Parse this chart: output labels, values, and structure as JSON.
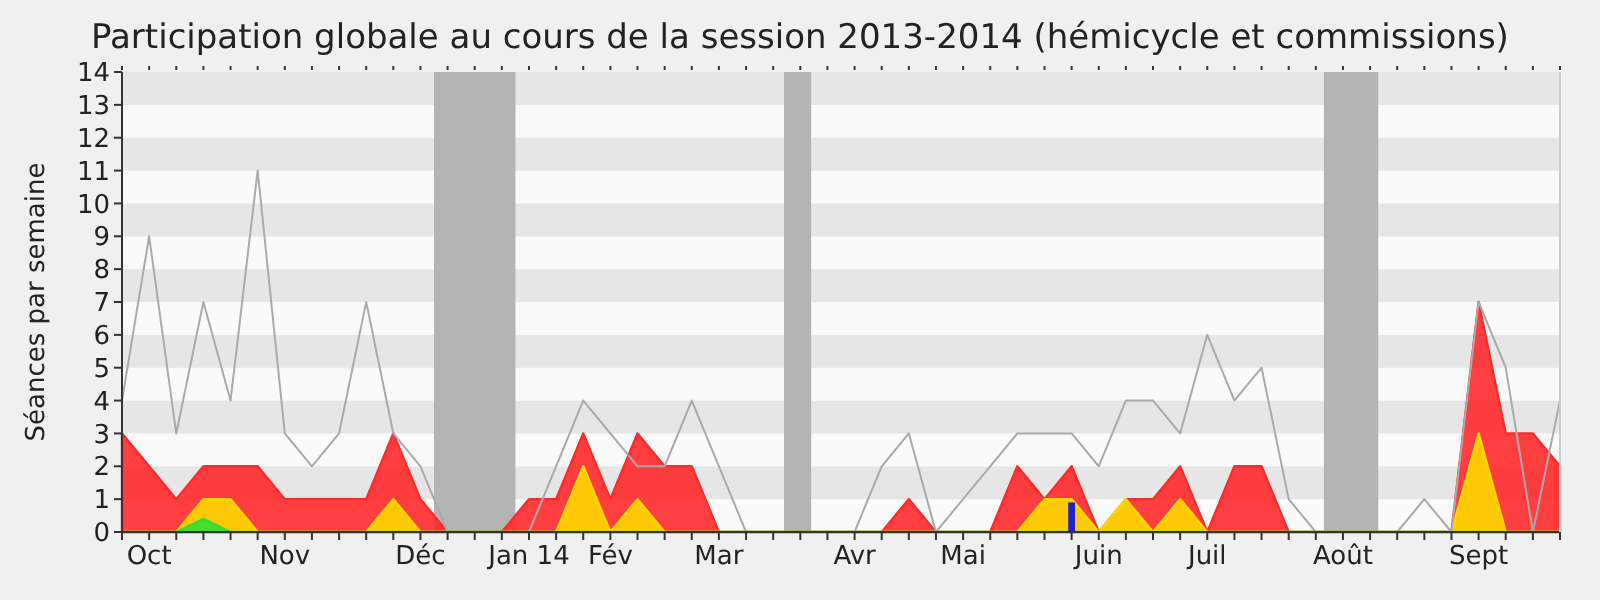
{
  "chart_data": {
    "type": "area",
    "title": "Participation globale au cours de la session 2013-2014 (hémicycle et commissions)",
    "ylabel": "Séances par semaine",
    "categories": [
      null,
      "Oct",
      null,
      null,
      null,
      null,
      "Nov",
      null,
      null,
      null,
      null,
      "Déc",
      null,
      null,
      null,
      "Jan 14",
      null,
      null,
      "Fév",
      null,
      null,
      null,
      "Mar",
      null,
      null,
      null,
      null,
      "Avr",
      null,
      null,
      null,
      "Mai",
      null,
      null,
      null,
      null,
      "Juin",
      null,
      null,
      null,
      "Juil",
      null,
      null,
      null,
      null,
      "Août",
      null,
      null,
      null,
      null,
      "Sept",
      null,
      null,
      null
    ],
    "ylim": [
      0,
      14
    ],
    "yticks": [
      0,
      1,
      2,
      3,
      4,
      5,
      6,
      7,
      8,
      9,
      10,
      11,
      12,
      13,
      14
    ],
    "series": [
      {
        "color": "#ff2a2a",
        "values": [
          3,
          2,
          1,
          2,
          2,
          2,
          1,
          1,
          1,
          1,
          3,
          1,
          0,
          0,
          0,
          1,
          1,
          3,
          1,
          3,
          2,
          2,
          0,
          0,
          0,
          0,
          0,
          0,
          0,
          1,
          0,
          0,
          0,
          2,
          1,
          2,
          0,
          1,
          1,
          2,
          0,
          2,
          2,
          0,
          0,
          0,
          0,
          0,
          0,
          0,
          7,
          3,
          3,
          2
        ]
      },
      {
        "color": "#ffd700",
        "values": [
          0,
          0,
          0,
          1,
          1,
          0,
          0,
          0,
          0,
          0,
          1,
          0,
          0,
          0,
          0,
          0,
          0,
          2,
          0,
          1,
          0,
          0,
          0,
          0,
          0,
          0,
          0,
          0,
          0,
          0,
          0,
          0,
          0,
          0,
          1,
          1,
          0,
          1,
          0,
          1,
          0,
          0,
          0,
          0,
          0,
          0,
          0,
          0,
          0,
          0,
          3,
          0,
          0,
          0
        ]
      },
      {
        "color": "#33dd33",
        "values": [
          0,
          0,
          0,
          0.4,
          0,
          0,
          0,
          0,
          0,
          0,
          0,
          0,
          0,
          0,
          0,
          0,
          0,
          0,
          0,
          0,
          0,
          0,
          0,
          0,
          0,
          0,
          0,
          0,
          0,
          0,
          0,
          0,
          0,
          0,
          0,
          0,
          0,
          0,
          0,
          0,
          0,
          0,
          0,
          0,
          0,
          0,
          0,
          0,
          0,
          0,
          0,
          0,
          0,
          0
        ]
      },
      {
        "type": "bar",
        "color": "#2222cc",
        "values": [
          null,
          null,
          null,
          null,
          null,
          null,
          null,
          null,
          null,
          null,
          null,
          null,
          null,
          null,
          null,
          null,
          null,
          null,
          null,
          null,
          null,
          null,
          null,
          null,
          null,
          null,
          null,
          null,
          null,
          null,
          null,
          null,
          null,
          null,
          null,
          0.9,
          null,
          null,
          null,
          null,
          null,
          null,
          null,
          null,
          null,
          null,
          null,
          null,
          null,
          null,
          null,
          null,
          null,
          null
        ]
      },
      {
        "type": "line",
        "color": "#aaaaaa",
        "values": [
          4,
          9,
          3,
          7,
          4,
          11,
          3,
          2,
          3,
          7,
          3,
          2,
          0,
          0,
          0,
          0,
          2,
          4,
          3,
          2,
          2,
          4,
          2,
          0,
          0,
          0,
          0,
          0,
          2,
          3,
          0,
          1,
          2,
          3,
          3,
          3,
          2,
          4,
          4,
          3,
          6,
          4,
          5,
          1,
          0,
          0,
          0,
          0,
          1,
          0,
          7,
          5,
          0,
          4
        ]
      }
    ]
  }
}
